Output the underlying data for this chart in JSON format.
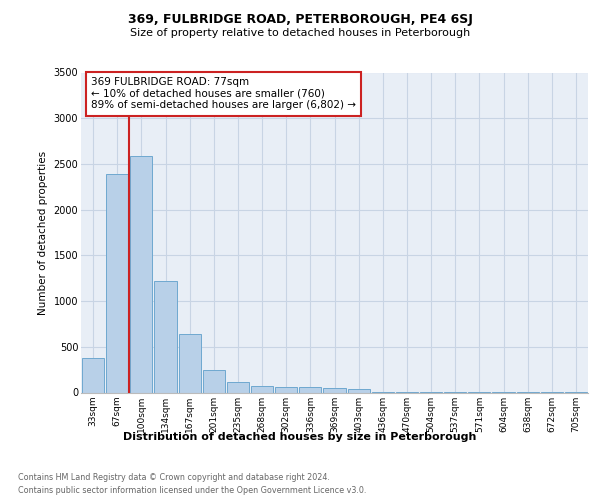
{
  "title1": "369, FULBRIDGE ROAD, PETERBOROUGH, PE4 6SJ",
  "title2": "Size of property relative to detached houses in Peterborough",
  "xlabel": "Distribution of detached houses by size in Peterborough",
  "ylabel": "Number of detached properties",
  "footnote1": "Contains HM Land Registry data © Crown copyright and database right 2024.",
  "footnote2": "Contains public sector information licensed under the Open Government Licence v3.0.",
  "annotation_line1": "369 FULBRIDGE ROAD: 77sqm",
  "annotation_line2": "← 10% of detached houses are smaller (760)",
  "annotation_line3": "89% of semi-detached houses are larger (6,802) →",
  "bar_color": "#b8d0e8",
  "bar_edge_color": "#6fa8d0",
  "annotation_box_facecolor": "#ffffff",
  "annotation_box_edgecolor": "#cc2222",
  "grid_color": "#c8d4e4",
  "background_color": "#e8eef6",
  "red_line_color": "#cc2222",
  "categories": [
    "33sqm",
    "67sqm",
    "100sqm",
    "134sqm",
    "167sqm",
    "201sqm",
    "235sqm",
    "268sqm",
    "302sqm",
    "336sqm",
    "369sqm",
    "403sqm",
    "436sqm",
    "470sqm",
    "504sqm",
    "537sqm",
    "571sqm",
    "604sqm",
    "638sqm",
    "672sqm",
    "705sqm"
  ],
  "values": [
    380,
    2390,
    2590,
    1225,
    640,
    245,
    110,
    70,
    60,
    55,
    50,
    38,
    6,
    4,
    3,
    2,
    2,
    1,
    1,
    1,
    1
  ],
  "ylim": [
    0,
    3500
  ],
  "yticks": [
    0,
    500,
    1000,
    1500,
    2000,
    2500,
    3000,
    3500
  ],
  "red_line_xidx": 1.5
}
